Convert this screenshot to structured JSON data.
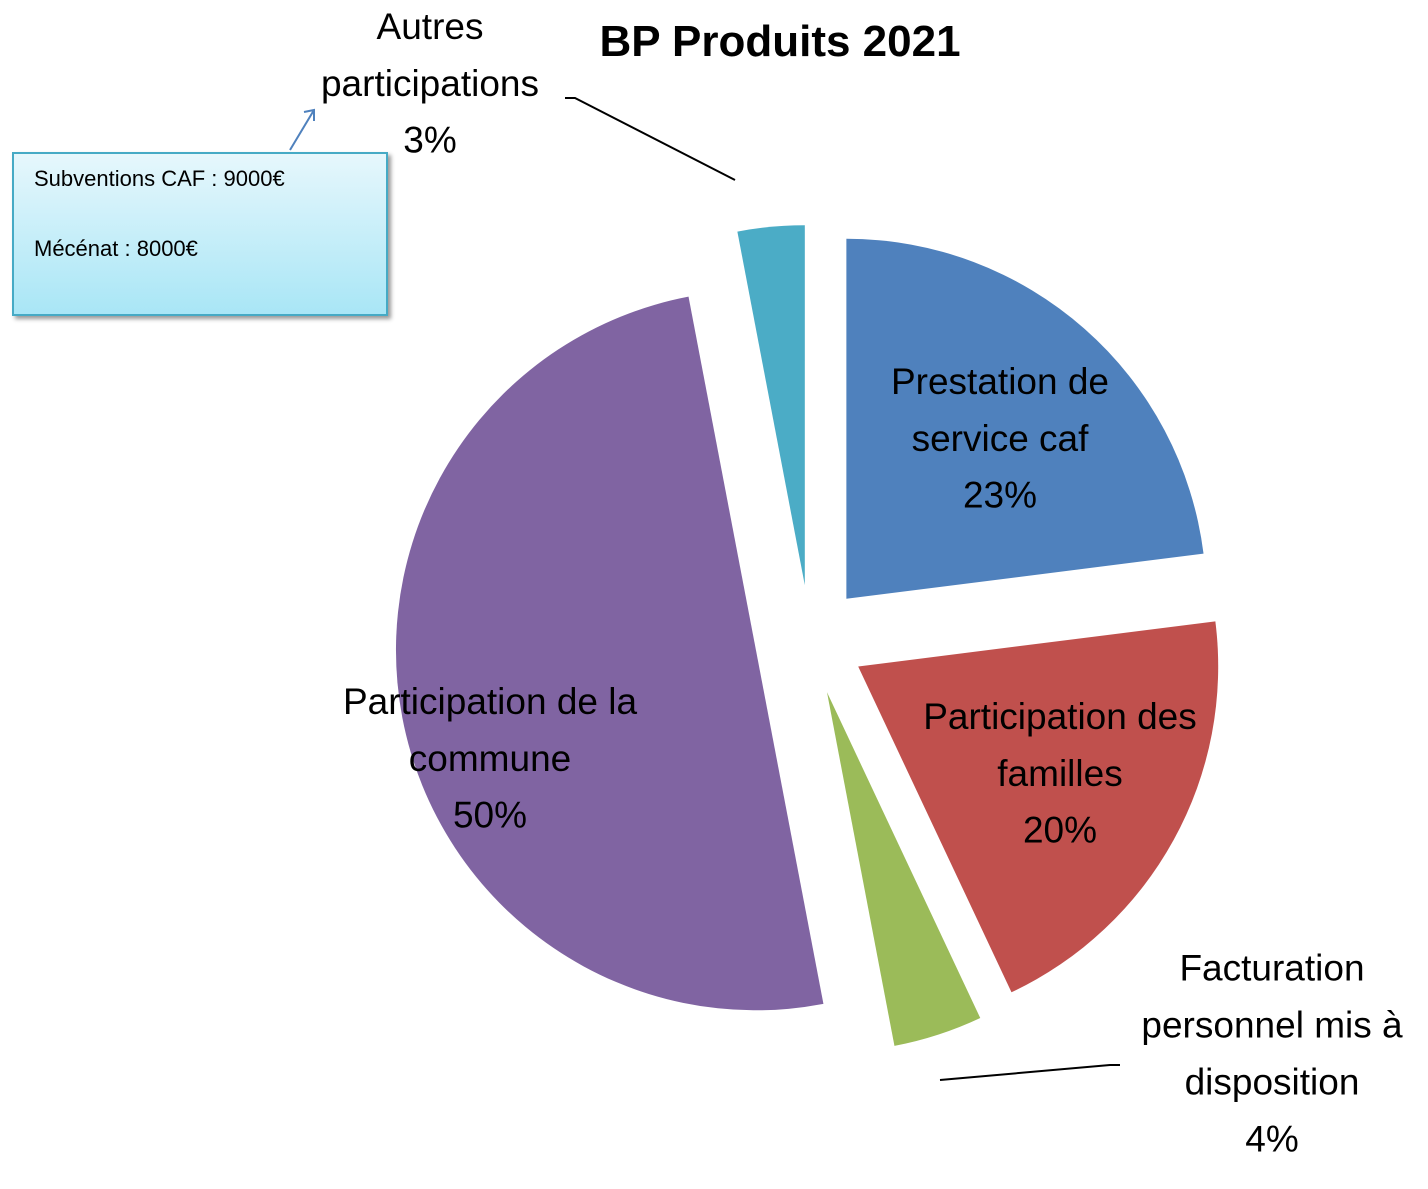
{
  "chart_data": {
    "type": "pie",
    "title": "BP Produits 2021",
    "categories": [
      "Prestation de service caf",
      "Participation des familles",
      "Facturation personnel mis à disposition",
      "Participation de la commune",
      "Autres participations"
    ],
    "values": [
      23,
      20,
      4,
      50,
      3
    ],
    "value_labels": [
      "23%",
      "20%",
      "4%",
      "50%",
      "3%"
    ],
    "colors": [
      "#4f81bd",
      "#c0504d",
      "#9bbb59",
      "#8064a2",
      "#4bacc6"
    ],
    "annotations": [
      "Subventions CAF : 9000€",
      "Mécénat : 8000€"
    ]
  }
}
